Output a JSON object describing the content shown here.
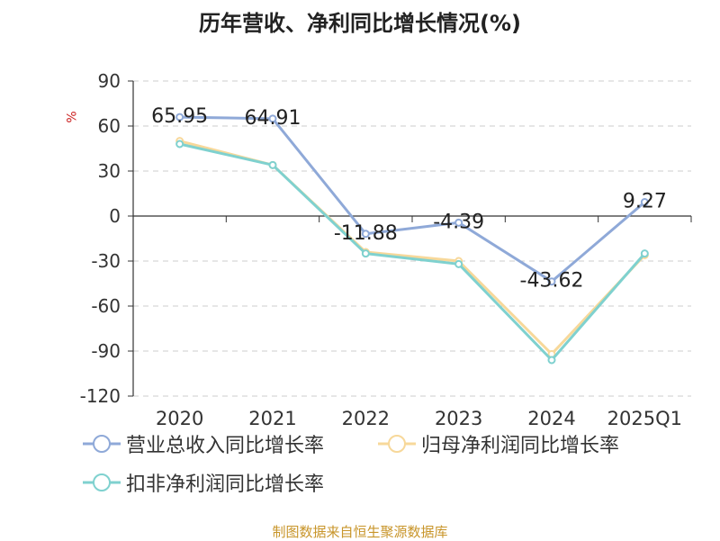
{
  "title": "历年营收、净利同比增长情况(%)",
  "unit_label": "%",
  "source": "制图数据来自恒生聚源数据库",
  "colors": {
    "revenue": "#8fa9d8",
    "net_profit": "#f7d89a",
    "deducted_net_profit": "#7fd1cf",
    "grid": "#cccccc",
    "axis": "#333333"
  },
  "chart_data": {
    "type": "line",
    "categories": [
      "2020",
      "2021",
      "2022",
      "2023",
      "2024",
      "2025Q1"
    ],
    "ylim": [
      -120,
      90
    ],
    "yticks": [
      90,
      60,
      30,
      0,
      -30,
      -60,
      -90,
      -120
    ],
    "ylabel": "%",
    "grid": true,
    "legend_position": "bottom",
    "series": [
      {
        "name": "营业总收入同比增长率",
        "color_key": "revenue",
        "values": [
          65.95,
          64.91,
          -11.88,
          -4.39,
          -43.62,
          9.27
        ],
        "labels": [
          "65.95",
          "64.91",
          "-11.88",
          "-4.39",
          "-43.62",
          "9.27"
        ]
      },
      {
        "name": "归母净利润同比增长率",
        "color_key": "net_profit",
        "values": [
          50,
          34,
          -24,
          -30,
          -92,
          -26
        ]
      },
      {
        "name": "扣非净利润同比增长率",
        "color_key": "deducted_net_profit",
        "values": [
          48,
          34,
          -25,
          -32,
          -96,
          -25
        ]
      }
    ]
  }
}
